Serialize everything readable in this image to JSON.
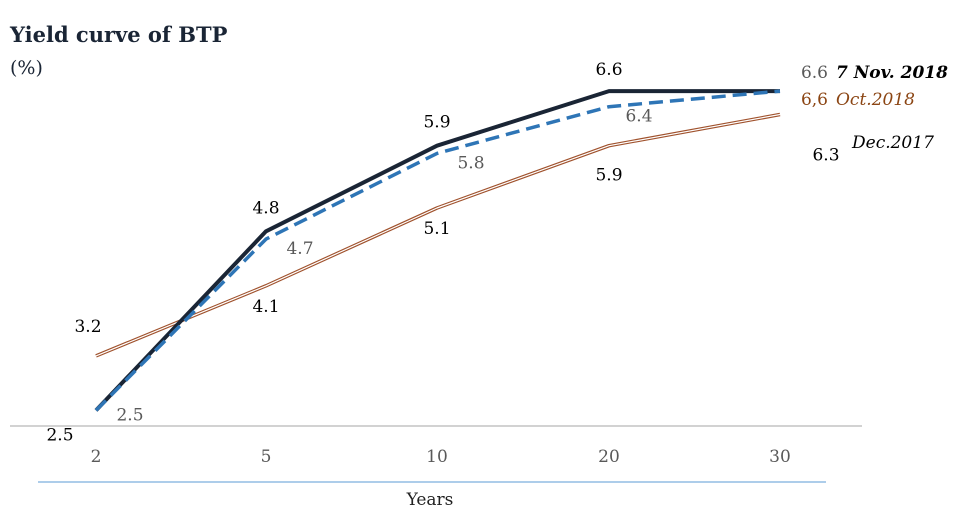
{
  "chart_data": {
    "type": "line",
    "title": "Yield curve of BTP",
    "subtitle": "(%)",
    "xlabel": "Years",
    "ylabel": "",
    "categories": [
      "2",
      "5",
      "10",
      "20",
      "30"
    ],
    "ylim": [
      2.3,
      7.0
    ],
    "grid": false,
    "legend_position": "right",
    "series": [
      {
        "name": "7 Nov. 2018",
        "values": [
          2.5,
          4.8,
          5.9,
          6.6,
          6.6
        ],
        "labels": [
          "2.5",
          "4.8",
          "5.9",
          "6.6",
          "6.6"
        ],
        "color": "#1a2535",
        "style": "solid-thick"
      },
      {
        "name": "Oct.2018",
        "values": [
          2.5,
          4.7,
          5.8,
          6.4,
          6.6
        ],
        "labels": [
          "2.5",
          "4.7",
          "5.8",
          "6.4",
          "6,6"
        ],
        "color": "#2e75b6",
        "style": "dashed",
        "legend_color": "#8b4513"
      },
      {
        "name": "Dec.2017",
        "values": [
          3.2,
          4.1,
          5.1,
          5.9,
          6.3
        ],
        "labels": [
          "3.2",
          "4.1",
          "5.1",
          "5.9",
          "6.3"
        ],
        "color": "#a0522d",
        "style": "double"
      }
    ]
  }
}
